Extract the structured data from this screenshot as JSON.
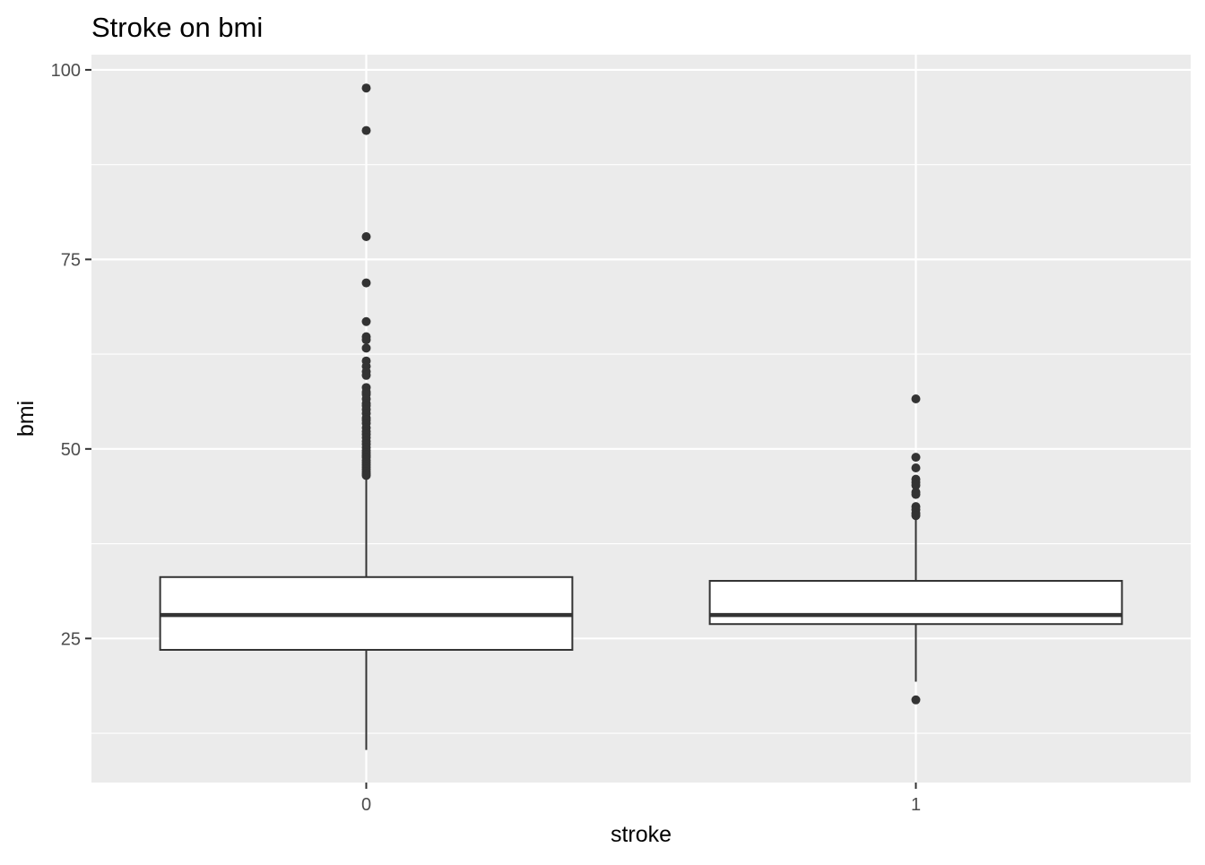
{
  "chart_data": {
    "type": "boxplot",
    "title": "Stroke on bmi",
    "xlabel": "stroke",
    "ylabel": "bmi",
    "categories": [
      "0",
      "1"
    ],
    "ylim": [
      6,
      102
    ],
    "y_ticks": [
      25,
      50,
      75,
      100
    ],
    "y_minor": [
      12.5,
      37.5,
      62.5,
      87.5
    ],
    "grid": true,
    "colors": {
      "panel": "#ebebeb",
      "grid": "#ffffff",
      "box_fill": "#ffffff",
      "box_line": "#333333",
      "outlier": "#333333",
      "tick": "#333333"
    },
    "boxes": [
      {
        "category": "0",
        "lower_whisker": 10.3,
        "q1": 23.5,
        "median": 28.1,
        "q3": 33.1,
        "upper_whisker": 46.3,
        "outliers": [
          97.6,
          92.0,
          78.0,
          71.9,
          66.8,
          64.8,
          64.4,
          63.3,
          61.6,
          60.9,
          60.2,
          59.7,
          58.1,
          57.5,
          57.2,
          56.6,
          56.0,
          55.7,
          55.2,
          54.7,
          54.1,
          53.8,
          53.4,
          52.8,
          52.3,
          51.9,
          51.5,
          51.0,
          50.6,
          50.2,
          49.8,
          49.5,
          49.2,
          48.9,
          48.5,
          48.2,
          47.9,
          47.6,
          47.3,
          47.0,
          46.7,
          46.5
        ]
      },
      {
        "category": "1",
        "lower_whisker": 19.3,
        "q1": 26.9,
        "median": 28.1,
        "q3": 32.6,
        "upper_whisker": 41.0,
        "outliers": [
          56.6,
          48.9,
          47.5,
          46.0,
          45.6,
          45.2,
          44.3,
          44.0,
          42.4,
          42.0,
          41.5,
          41.2,
          16.9
        ]
      }
    ]
  }
}
